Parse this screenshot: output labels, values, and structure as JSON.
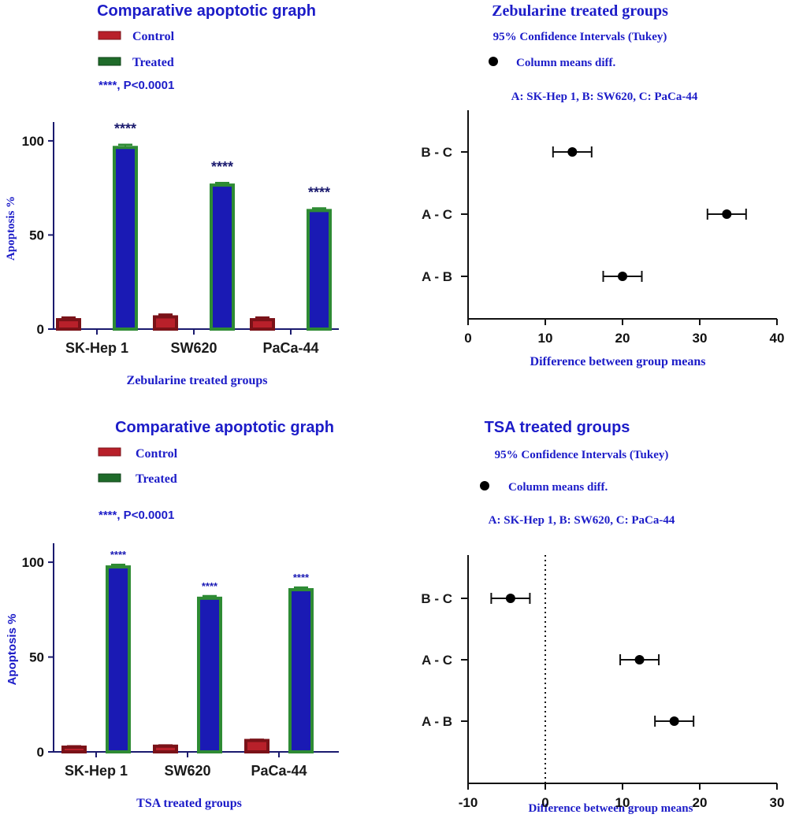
{
  "chart_data": [
    {
      "type": "bar",
      "title": "Comparative apoptotic graph",
      "legend": [
        {
          "name": "Control",
          "color": "#b8202a"
        },
        {
          "name": "Treated",
          "color": "#1f6b2a"
        }
      ],
      "note": "****, P<0.0001",
      "ylabel": "Apoptosis %",
      "xlabel": "Zebularine treated groups",
      "categories": [
        "SK-Hep 1",
        "SW620",
        "PaCa-44"
      ],
      "series": [
        {
          "name": "Control",
          "values": [
            5,
            6.5,
            5
          ],
          "errors": [
            1.2,
            1.3,
            1.2
          ]
        },
        {
          "name": "Treated",
          "values": [
            96.5,
            76.5,
            63
          ],
          "errors": [
            1.5,
            1.2,
            1.2
          ]
        }
      ],
      "significance": [
        "****",
        "****",
        "****"
      ],
      "ylim": [
        0,
        110
      ],
      "yticks": [
        0,
        50,
        100
      ]
    },
    {
      "type": "scatter",
      "title": "Zebularine treated groups",
      "subtitle": "95% Confidence Intervals (Tukey)",
      "legend": [
        {
          "name": "Column means diff.",
          "color": "#000000"
        }
      ],
      "note": "A: SK-Hep 1, B: SW620, C: PaCa-44",
      "xlabel": "Difference between group means",
      "categories": [
        "B - C",
        "A - C",
        "A - B"
      ],
      "means": [
        13.5,
        33.5,
        20
      ],
      "ci_low": [
        11,
        31,
        17.5
      ],
      "ci_high": [
        16,
        36,
        22.5
      ],
      "xlim": [
        0,
        40
      ],
      "xticks": [
        0,
        10,
        20,
        30,
        40
      ]
    },
    {
      "type": "bar",
      "title": "Comparative apoptotic graph",
      "legend": [
        {
          "name": "Control",
          "color": "#b8202a"
        },
        {
          "name": "Treated",
          "color": "#1f6b2a"
        }
      ],
      "note": "****, P<0.0001",
      "ylabel": "Apoptosis %",
      "xlabel": "TSA treated groups",
      "categories": [
        "SK-Hep 1",
        "SW620",
        "PaCa-44"
      ],
      "series": [
        {
          "name": "Control",
          "values": [
            2.5,
            3,
            6
          ],
          "errors": [
            0.5,
            0.5,
            0.5
          ]
        },
        {
          "name": "Treated",
          "values": [
            97.5,
            81,
            85.5
          ],
          "errors": [
            1.2,
            1.2,
            1.2
          ]
        }
      ],
      "significance": [
        "****",
        "****",
        "****"
      ],
      "ylim": [
        0,
        110
      ],
      "yticks": [
        0,
        50,
        100
      ]
    },
    {
      "type": "scatter",
      "title": "TSA treated groups",
      "subtitle": "95% Confidence Intervals (Tukey)",
      "legend": [
        {
          "name": "Column means diff.",
          "color": "#000000"
        }
      ],
      "note": "A: SK-Hep 1, B: SW620, C: PaCa-44",
      "xlabel": "Difference between group means",
      "categories": [
        "B - C",
        "A - C",
        "A - B"
      ],
      "means": [
        -4.5,
        12.2,
        16.7
      ],
      "ci_low": [
        -7,
        9.7,
        14.2
      ],
      "ci_high": [
        -2,
        14.7,
        19.2
      ],
      "xlim": [
        -10,
        30
      ],
      "xticks": [
        -10,
        0,
        10,
        20,
        30
      ],
      "zero_line": true
    }
  ]
}
